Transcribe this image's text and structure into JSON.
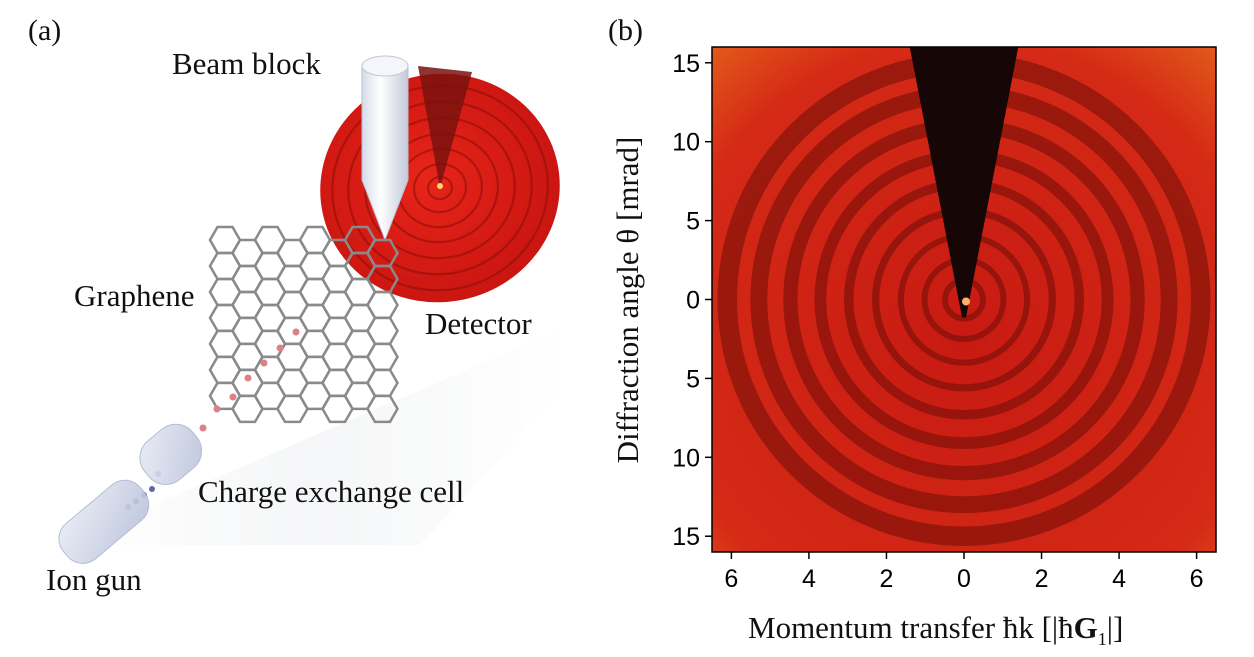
{
  "figure": {
    "panel_a": {
      "label": "(a)",
      "labels": {
        "beam_block": "Beam block",
        "detector": "Detector",
        "graphene": "Graphene",
        "charge_exchange_cell": "Charge exchange cell",
        "ion_gun": "Ion gun"
      }
    },
    "panel_b": {
      "label": "(b)",
      "xlabel_prefix": "Momentum transfer ħk [|ħ",
      "xlabel_bold": "G",
      "xlabel_sub": "1",
      "xlabel_suffix": "|]",
      "ylabel": "Diffraction angle θ [mrad]"
    }
  },
  "chart_data": {
    "type": "heatmap",
    "description_colors": {
      "background": "#c81e12",
      "ring": "#6e0c08",
      "shadow": "#1a0606"
    },
    "x_ticks": [
      "6",
      "4",
      "2",
      "0",
      "2",
      "4",
      "6"
    ],
    "x_tick_values": [
      -6,
      -4,
      -2,
      0,
      2,
      4,
      6
    ],
    "y_ticks": [
      "15",
      "10",
      "5",
      "0",
      "5",
      "10",
      "15"
    ],
    "y_tick_values": [
      15,
      10,
      5,
      0,
      -5,
      -10,
      -15
    ],
    "xlim": [
      -6.5,
      6.5
    ],
    "ylim": [
      -16,
      16
    ],
    "ring_radii_mrad": [
      1.2,
      2.5,
      4.0,
      5.6,
      7.3,
      9.1,
      11.0,
      13.0,
      15.0
    ]
  }
}
